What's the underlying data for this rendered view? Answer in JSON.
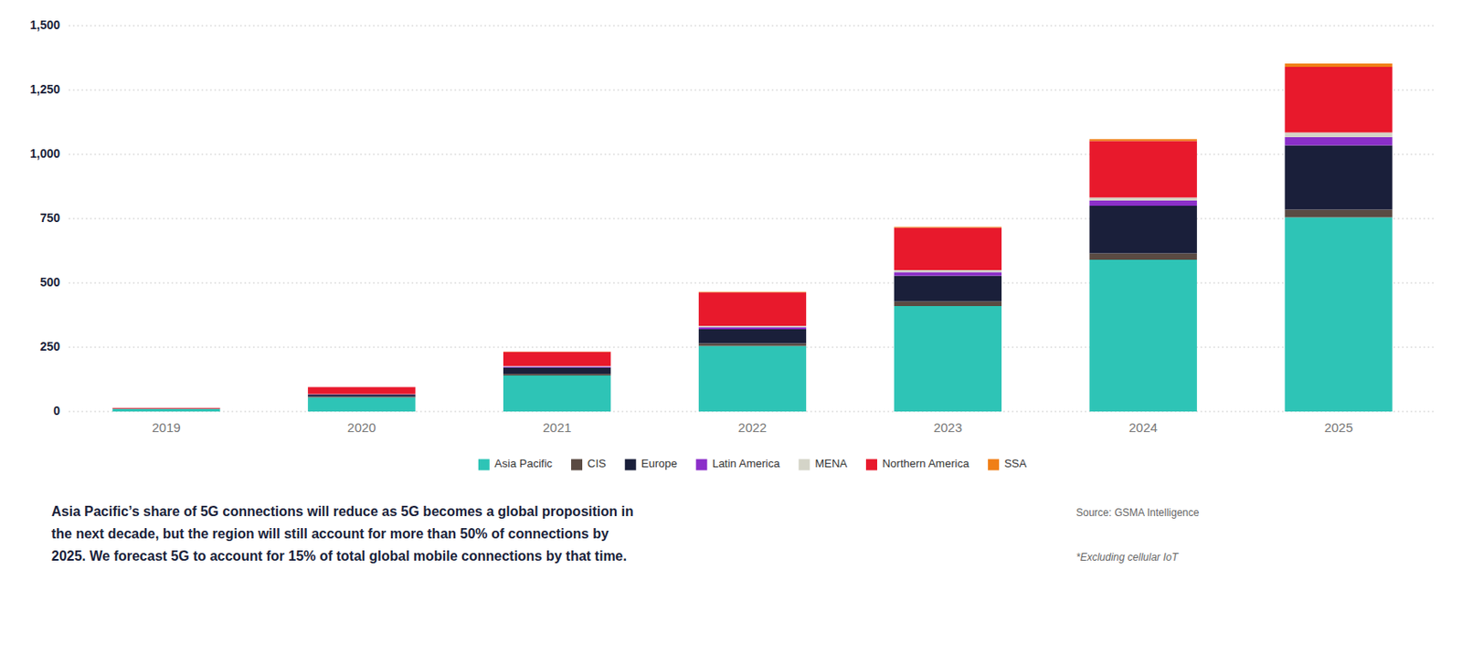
{
  "chart_data": {
    "type": "bar",
    "stacked": true,
    "categories": [
      "2019",
      "2020",
      "2021",
      "2022",
      "2023",
      "2024",
      "2025"
    ],
    "series": [
      {
        "name": "Asia Pacific",
        "color": "#2ec4b6",
        "values": [
          10,
          55,
          140,
          255,
          410,
          590,
          755
        ]
      },
      {
        "name": "CIS",
        "color": "#5a4a42",
        "values": [
          0,
          3,
          6,
          10,
          18,
          25,
          30
        ]
      },
      {
        "name": "Europe",
        "color": "#1a1f3a",
        "values": [
          1,
          8,
          25,
          55,
          100,
          185,
          250
        ]
      },
      {
        "name": "Latin America",
        "color": "#8b2fc9",
        "values": [
          0,
          1,
          4,
          8,
          14,
          20,
          32
        ]
      },
      {
        "name": "MENA",
        "color": "#d4d4c8",
        "values": [
          0,
          1,
          2,
          5,
          8,
          12,
          18
        ]
      },
      {
        "name": "Northern America",
        "color": "#e8192c",
        "values": [
          3,
          27,
          55,
          130,
          165,
          220,
          255
        ]
      },
      {
        "name": "SSA",
        "color": "#f07f16",
        "values": [
          0,
          0,
          1,
          2,
          3,
          7,
          13
        ]
      }
    ],
    "ylim": [
      0,
      1500
    ],
    "yticks": [
      0,
      250,
      500,
      750,
      {
        "value": 1000,
        "label": "1,000"
      },
      {
        "value": 1250,
        "label": "1,250"
      },
      {
        "value": 1500,
        "label": "1,500"
      }
    ],
    "grid": true,
    "legend": "bottom",
    "annotations": [
      "Asia Pacific’s share of 5G connections will reduce as 5G becomes a global proposition in",
      "the next decade, but the region will still account for more than 50% of connections by",
      "2025. We forecast 5G to account for 15% of total global mobile connections by that time.",
      "Source: GSMA Intelligence",
      "*Excluding cellular IoT"
    ]
  }
}
